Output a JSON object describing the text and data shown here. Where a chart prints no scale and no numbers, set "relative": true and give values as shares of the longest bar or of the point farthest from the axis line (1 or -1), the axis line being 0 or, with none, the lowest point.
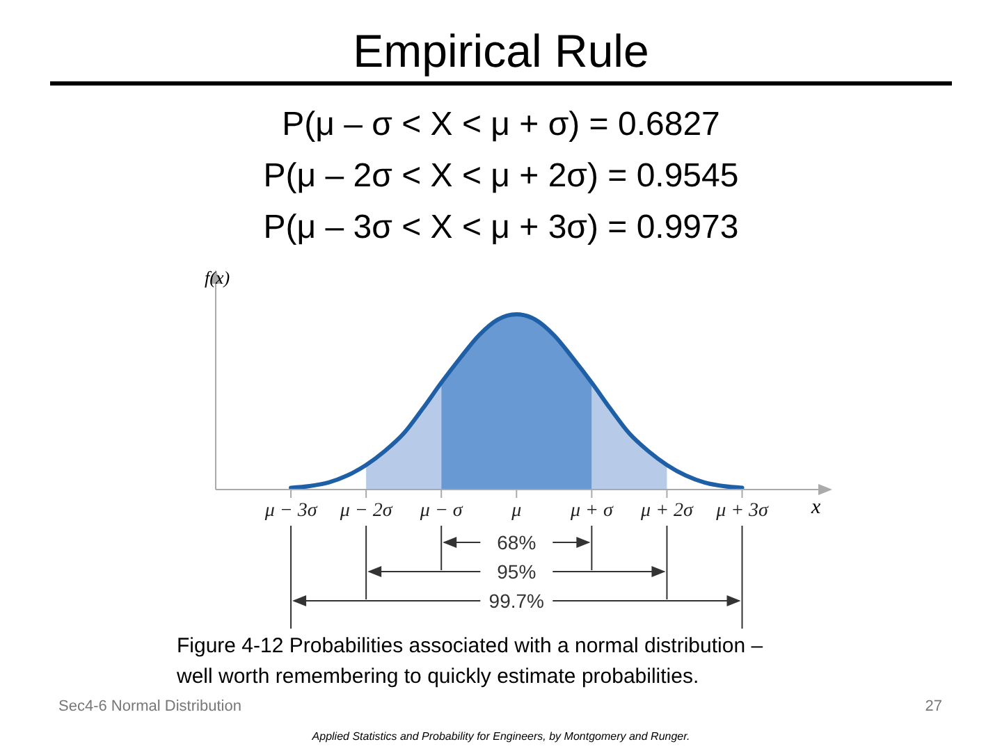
{
  "chart_data": {
    "type": "area",
    "title": "Empirical Rule",
    "subtitle": [
      "P(μ – σ < X < μ + σ) = 0.6827",
      "P(μ – 2σ < X < μ + 2σ) = 0.9545",
      "P(μ – 3σ < X < μ + 3σ) = 0.9973"
    ],
    "xlabel": "x",
    "ylabel": "f(x)",
    "relative": true,
    "xlim": [
      -4,
      4.05
    ],
    "xticks": [
      {
        "value": -3,
        "label": "μ − 3σ"
      },
      {
        "value": -2,
        "label": "μ − 2σ"
      },
      {
        "value": -1,
        "label": "μ − σ"
      },
      {
        "value": 0,
        "label": "μ"
      },
      {
        "value": 1,
        "label": "μ + σ"
      },
      {
        "value": 2,
        "label": "μ + 2σ"
      },
      {
        "value": 3,
        "label": "μ + 3σ"
      }
    ],
    "series": [
      {
        "color": "#b7cbe9",
        "x": [
          -2,
          -1.75,
          -1.5,
          -1.25,
          -1
        ],
        "values": [
          0.14,
          0.22,
          0.32,
          0.46,
          0.61
        ]
      },
      {
        "color": "#b7cbe9",
        "x": [
          1,
          1.25,
          1.5,
          1.75,
          2
        ],
        "values": [
          0.61,
          0.46,
          0.32,
          0.22,
          0.14
        ]
      },
      {
        "color": "#6899d3",
        "x": [
          -1,
          -0.75,
          -0.5,
          -0.25,
          0,
          0.25,
          0.5,
          0.75,
          1
        ],
        "values": [
          0.61,
          0.75,
          0.88,
          0.97,
          1,
          0.97,
          0.88,
          0.75,
          0.61
        ]
      },
      {
        "type": "line",
        "color": "#1f5fa6",
        "x": [
          -3,
          -2.75,
          -2.5,
          -2.25,
          -2,
          -1.75,
          -1.5,
          -1.25,
          -1,
          -0.75,
          -0.5,
          -0.25,
          0,
          0.25,
          0.5,
          0.75,
          1,
          1.25,
          1.5,
          1.75,
          2,
          2.25,
          2.5,
          2.75,
          3
        ],
        "values": [
          0.01,
          0.02,
          0.04,
          0.08,
          0.14,
          0.22,
          0.32,
          0.46,
          0.61,
          0.75,
          0.88,
          0.97,
          1,
          0.97,
          0.88,
          0.75,
          0.61,
          0.46,
          0.32,
          0.22,
          0.14,
          0.08,
          0.04,
          0.02,
          0.01
        ]
      }
    ],
    "annotations": [
      "68%",
      "95%",
      "99.7%",
      "Figure 4-12  Probabilities associated with a normal distribution – well worth remembering to quickly estimate probabilities.",
      "Sec4-6 Normal Distribution",
      "27",
      "Applied Statistics and Probability for Engineers, by Montgomery and Runger."
    ]
  }
}
